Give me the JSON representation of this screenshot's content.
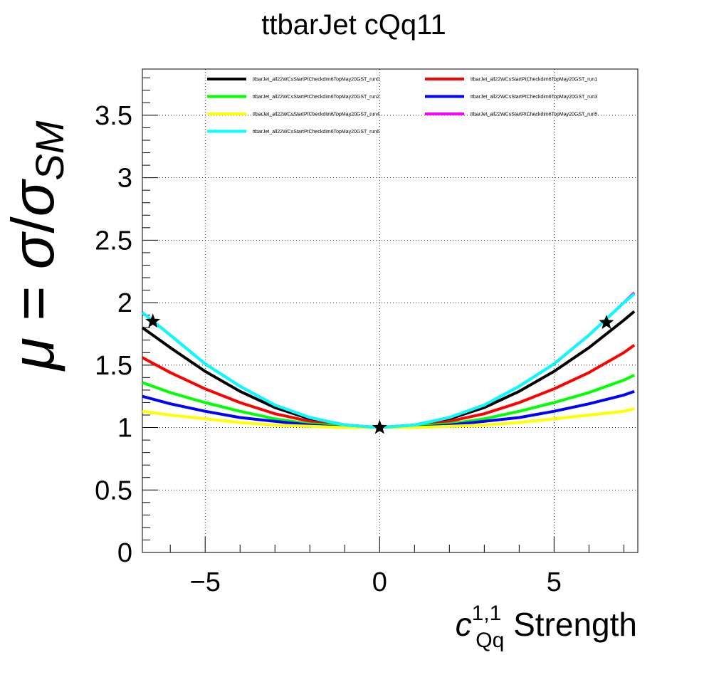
{
  "chart_data": {
    "type": "line",
    "title": "ttbarJet cQq11",
    "xlabel": {
      "symbol": "c",
      "superscript": "1,1",
      "subscript": "Qq",
      "suffix": " Strength"
    },
    "ylabel": {
      "mu": "μ",
      "equals": " = ",
      "sigma": "σ",
      "slash": "/",
      "sigma2": "σ",
      "subscript": "SM"
    },
    "xlim": [
      -6.8,
      7.4
    ],
    "ylim": [
      0,
      3.87
    ],
    "x_ticks": [
      -5,
      0,
      5
    ],
    "x_tick_labels": [
      "−5",
      "0",
      "5"
    ],
    "y_ticks": [
      0,
      0.5,
      1,
      1.5,
      2,
      2.5,
      3,
      3.5
    ],
    "y_tick_labels": [
      "0",
      "0.5",
      "1",
      "1.5",
      "2",
      "2.5",
      "3",
      "3.5"
    ],
    "grid": true,
    "legend_position": "top",
    "x": [
      -6.8,
      -6,
      -5,
      -4,
      -3,
      -2,
      -1,
      0,
      1,
      2,
      3,
      4,
      5,
      6,
      7,
      7.3
    ],
    "series": [
      {
        "name": "ttbarJet_all22WCsStartPtCheckdim6TopMay20GST_run0",
        "color": "#000000",
        "values": [
          1.8,
          1.64,
          1.45,
          1.29,
          1.16,
          1.07,
          1.02,
          1.0,
          1.02,
          1.07,
          1.16,
          1.29,
          1.45,
          1.64,
          1.86,
          1.93
        ]
      },
      {
        "name": "ttbarJet_all22WCsStartPtCheckdim6TopMay20GST_run1",
        "color": "#ff0000",
        "values": [
          1.56,
          1.44,
          1.31,
          1.2,
          1.11,
          1.05,
          1.01,
          1.0,
          1.01,
          1.05,
          1.11,
          1.2,
          1.31,
          1.44,
          1.6,
          1.66
        ]
      },
      {
        "name": "ttbarJet_all22WCsStartPtCheckdim6TopMay20GST_run2",
        "color": "#00ff00",
        "values": [
          1.36,
          1.28,
          1.2,
          1.13,
          1.07,
          1.03,
          1.01,
          1.0,
          1.01,
          1.03,
          1.07,
          1.13,
          1.2,
          1.28,
          1.38,
          1.42
        ]
      },
      {
        "name": "ttbarJet_all22WCsStartPtCheckdim6TopMay20GST_run3",
        "color": "#0000ff",
        "values": [
          1.25,
          1.19,
          1.13,
          1.08,
          1.05,
          1.02,
          1.0,
          1.0,
          1.0,
          1.02,
          1.05,
          1.08,
          1.13,
          1.19,
          1.26,
          1.29
        ]
      },
      {
        "name": "ttbarJet_all22WCsStartPtCheckdim6TopMay20GST_run4",
        "color": "#ffff00",
        "values": [
          1.13,
          1.1,
          1.07,
          1.04,
          1.02,
          1.01,
          1.0,
          1.0,
          1.0,
          1.01,
          1.02,
          1.04,
          1.07,
          1.1,
          1.13,
          1.15
        ]
      },
      {
        "name": "ttbarJet_all22WCsStartPtCheckdim6TopMay20GST_run5",
        "color": "#ff00ff",
        "values": [
          1.92,
          1.74,
          1.51,
          1.33,
          1.18,
          1.08,
          1.02,
          1.0,
          1.02,
          1.08,
          1.18,
          1.33,
          1.51,
          1.74,
          2.0,
          2.08
        ]
      },
      {
        "name": "ttbarJet_all22WCsStartPtCheckdim6TopMay20GST_run6",
        "color": "#00ffff",
        "values": [
          1.92,
          1.74,
          1.51,
          1.33,
          1.18,
          1.08,
          1.02,
          1.0,
          1.02,
          1.08,
          1.18,
          1.33,
          1.51,
          1.74,
          2.0,
          2.07
        ]
      }
    ],
    "markers": [
      {
        "x": -6.5,
        "y": 1.85
      },
      {
        "x": 0,
        "y": 1.0
      },
      {
        "x": 6.5,
        "y": 1.84
      }
    ]
  }
}
